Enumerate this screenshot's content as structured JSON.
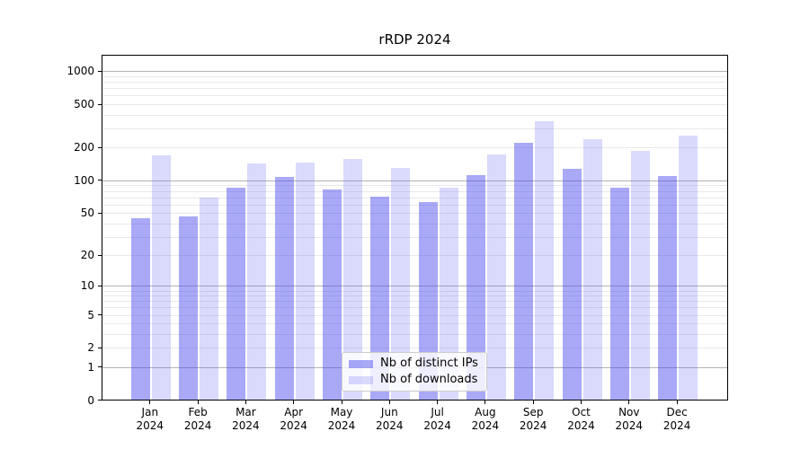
{
  "chart_data": {
    "type": "bar",
    "title": "rRDP 2024",
    "y_scale": "log1p",
    "grid": true,
    "categories": [
      "Jan 2024",
      "Feb 2024",
      "Mar 2024",
      "Apr 2024",
      "May 2024",
      "Jun 2024",
      "Jul 2024",
      "Aug 2024",
      "Sep 2024",
      "Oct 2024",
      "Nov 2024",
      "Dec 2024"
    ],
    "series": [
      {
        "name": "Nb of distinct IPs",
        "color": "rgba(68,68,238,0.46)",
        "values": [
          44,
          46,
          85,
          107,
          81,
          70,
          62,
          111,
          220,
          127,
          85,
          109
        ]
      },
      {
        "name": "Nb of downloads",
        "color": "rgba(68,68,238,0.20)",
        "values": [
          170,
          69,
          141,
          146,
          156,
          128,
          85,
          173,
          347,
          236,
          184,
          255
        ]
      }
    ],
    "y_ticks": [
      0,
      1,
      2,
      5,
      10,
      20,
      50,
      100,
      200,
      500,
      1000
    ],
    "ylim": [
      0,
      1400
    ],
    "xlabel": "",
    "ylabel": "",
    "legend_position": "lower center"
  }
}
